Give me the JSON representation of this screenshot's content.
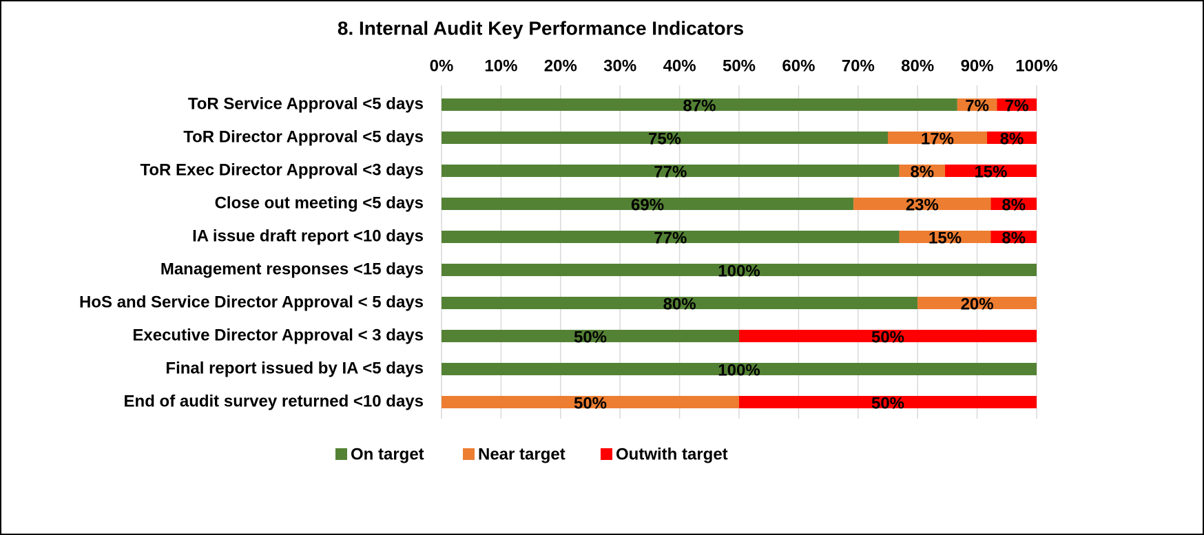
{
  "chart_data": {
    "type": "stacked_barh",
    "title": "8. Internal Audit Key Performance Indicators",
    "categories": [
      "ToR Service Approval <5 days",
      "ToR Director Approval <5 days",
      "ToR Exec Director Approval <3 days",
      "Close out meeting <5 days",
      "IA issue draft report <10 days",
      "Management responses <15 days",
      "HoS and Service Director Approval < 5 days",
      "Executive Director Approval < 3 days",
      "Final report issued by IA <5 days",
      "End of audit survey returned <10 days"
    ],
    "series": [
      {
        "name": "On target",
        "color": "#548235",
        "values": [
          86.67,
          75,
          76.92,
          69.23,
          76.92,
          100,
          80,
          50,
          100,
          0
        ],
        "value_labels": [
          "87%",
          "75%",
          "77%",
          "69%",
          "77%",
          "100%",
          "80%",
          "50%",
          "100%",
          null
        ]
      },
      {
        "name": "Near target",
        "color": "#ed7d31",
        "values": [
          6.67,
          16.67,
          7.69,
          23.08,
          15.38,
          0,
          20,
          0,
          0,
          50
        ],
        "value_labels": [
          "7%",
          "17%",
          "8%",
          "23%",
          "15%",
          null,
          "20%",
          null,
          null,
          "50%"
        ]
      },
      {
        "name": "Outwith target",
        "color": "#ff0000",
        "values": [
          6.67,
          8.33,
          15.38,
          7.69,
          7.69,
          0,
          0,
          50,
          0,
          50
        ],
        "value_labels": [
          "7%",
          "8%",
          "15%",
          "8%",
          "8%",
          null,
          null,
          "50%",
          null,
          "50%"
        ]
      }
    ],
    "xlim": [
      0,
      100
    ],
    "xticks": [
      {
        "value": 0,
        "label": "0%"
      },
      {
        "value": 10,
        "label": "10%"
      },
      {
        "value": 20,
        "label": "20%"
      },
      {
        "value": 30,
        "label": "30%"
      },
      {
        "value": 40,
        "label": "40%"
      },
      {
        "value": 50,
        "label": "50%"
      },
      {
        "value": 60,
        "label": "60%"
      },
      {
        "value": 70,
        "label": "70%"
      },
      {
        "value": 80,
        "label": "80%"
      },
      {
        "value": 90,
        "label": "90%"
      },
      {
        "value": 100,
        "label": "100%"
      }
    ],
    "grid": true,
    "legend": "bottom"
  }
}
